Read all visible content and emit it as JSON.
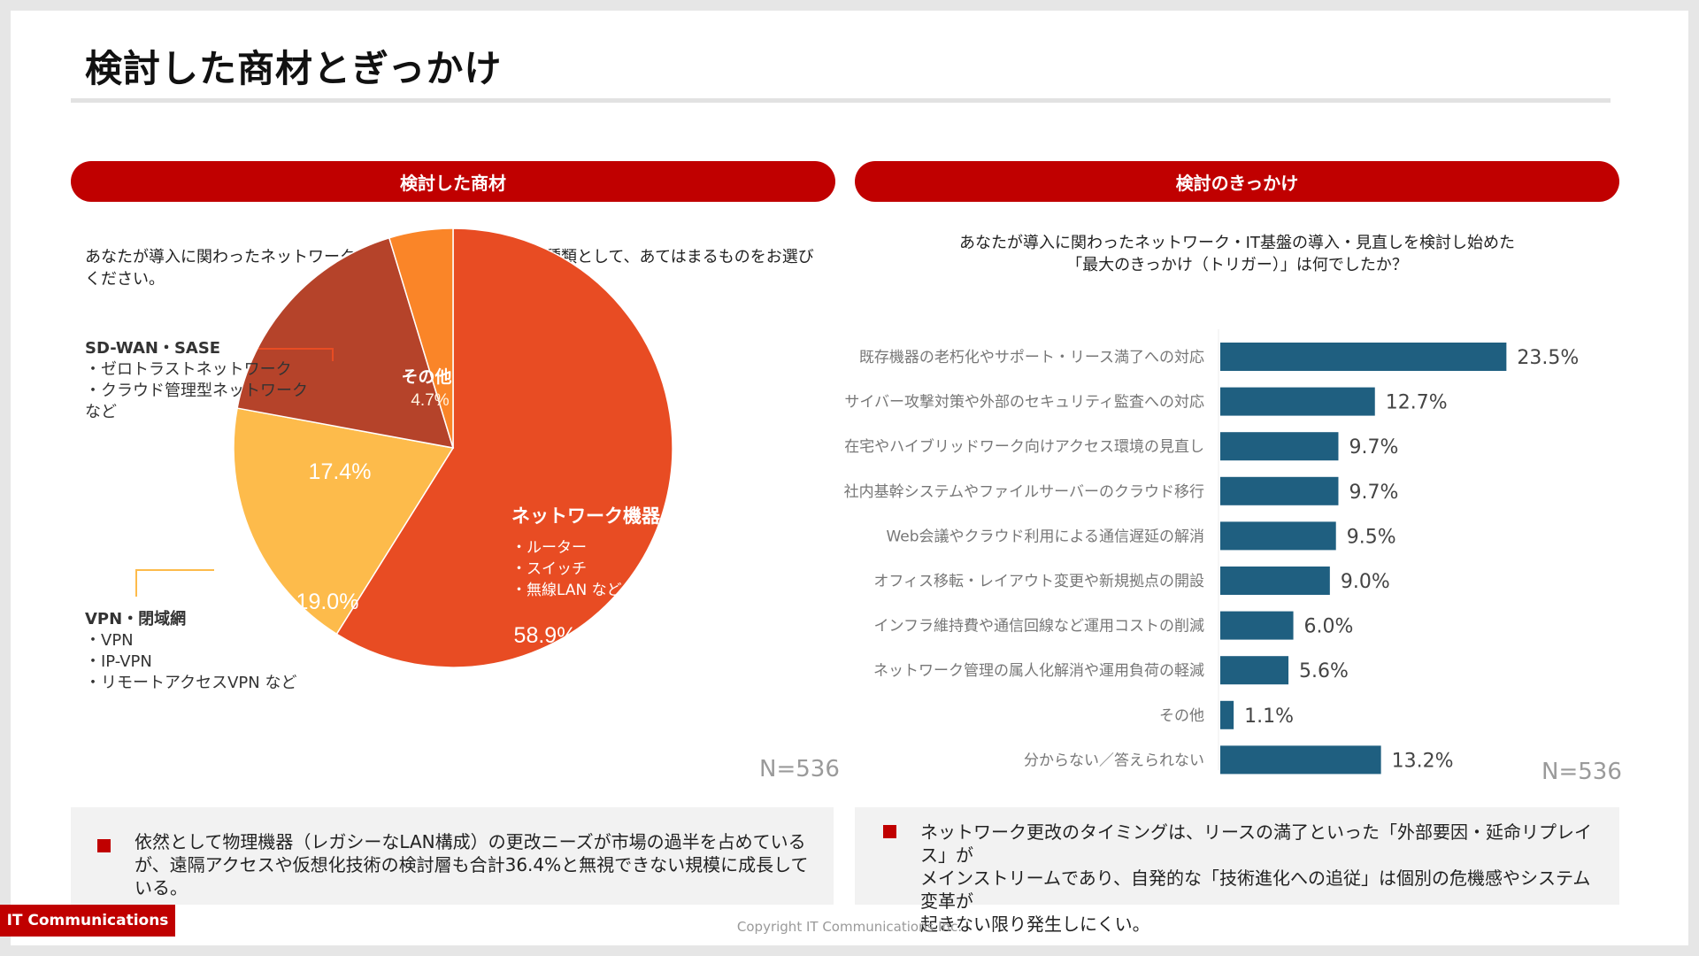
{
  "page": {
    "title": "検討した商材とぎっかけ",
    "footer_badge": "IT Communications",
    "copyright": "Copyright IT Communications Inc."
  },
  "left_panel": {
    "header": "検討した商材",
    "question": "あなたが導入に関わったネットワーク・IT基盤の具体的な商材の種類として、あてはまるものをお選びください。",
    "n_label": "N=536",
    "callouts": {
      "sdwan": {
        "title": "SD-WAN・SASE",
        "lines": [
          "・ゼロトラストネットワーク",
          "・クラウド管理型ネットワーク",
          "など"
        ]
      },
      "vpn": {
        "title": "VPN・閉域網",
        "lines": [
          "・VPN",
          "・IP-VPN",
          "・リモートアクセスVPN など"
        ]
      },
      "network": {
        "title": "ネットワーク機器",
        "lines": [
          "・ルーター",
          "・スイッチ",
          "・無線LAN など"
        ]
      }
    },
    "summary": "依然として物理機器（レガシーなLAN構成）の更改ニーズが市場の過半を占めているが、遠隔アクセスや仮想化技術の検討層も合計36.4%と無視できない規模に成長している。"
  },
  "right_panel": {
    "header": "検討のきっかけ",
    "question_lines": [
      "あなたが導入に関わったネットワーク・IT基盤の導入・見直しを検討し始めた",
      "「最大のきっかけ（トリガー）」は何でしたか？"
    ],
    "n_label": "N=536",
    "summary_lines": [
      "ネットワーク更改のタイミングは、リースの満了といった「外部要因・延命リプレイス」が",
      "メインストリームであり、自発的な「技術進化への追従」は個別の危機感やシステム変革が",
      "起きない限り発生しにくい。"
    ]
  },
  "chart_data": [
    {
      "type": "pie",
      "title": "検討した商材",
      "slices": [
        {
          "label": "ネットワーク機器",
          "value": 58.9,
          "value_label": "58.9%",
          "color": "#e84c23"
        },
        {
          "label": "VPN・閉域網",
          "value": 19.0,
          "value_label": "19.0%",
          "color": "#fdbb4b"
        },
        {
          "label": "SD-WAN・SASE",
          "value": 17.4,
          "value_label": "17.4%",
          "color": "#b5432a"
        },
        {
          "label": "その他",
          "value": 4.7,
          "value_label": "4.7%",
          "color": "#fa8528"
        }
      ],
      "start": "12 o'clock",
      "direction": "clockwise"
    },
    {
      "type": "bar",
      "orientation": "horizontal",
      "title": "検討のきっかけ",
      "categories": [
        "既存機器の老朽化やサポート・リース満了への対応",
        "サイバー攻撃対策や外部のセキュリティ監査への対応",
        "在宅やハイブリッドワーク向けアクセス環境の見直し",
        "社内基幹システムやファイルサーバーのクラウド移行",
        "Web会議やクラウド利用による通信遅延の解消",
        "オフィス移転・レイアウト変更や新規拠点の開設",
        "インフラ維持費や通信回線など運用コストの削減",
        "ネットワーク管理の属人化解消や運用負荷の軽減",
        "その他",
        "分からない／答えられない"
      ],
      "values": [
        23.5,
        12.7,
        9.7,
        9.7,
        9.5,
        9.0,
        6.0,
        5.6,
        1.1,
        13.2
      ],
      "value_labels": [
        "23.5%",
        "12.7%",
        "9.7%",
        "9.7%",
        "9.5%",
        "9.0%",
        "6.0%",
        "5.6%",
        "1.1%",
        "13.2%"
      ],
      "xlim": [
        0,
        25
      ],
      "color": "#1f5f80",
      "grid": false
    }
  ]
}
